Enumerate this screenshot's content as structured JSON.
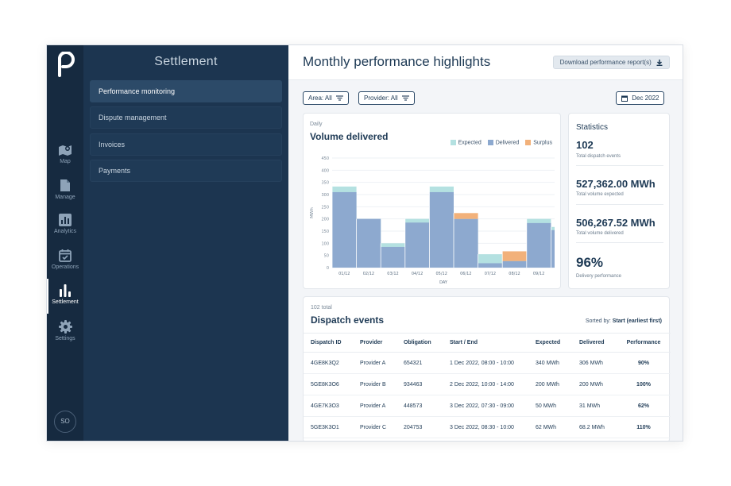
{
  "rail": {
    "items": [
      {
        "label": "Map",
        "icon": "map-icon"
      },
      {
        "label": "Manage",
        "icon": "document-icon"
      },
      {
        "label": "Analytics",
        "icon": "analytics-icon"
      },
      {
        "label": "Operations",
        "icon": "calendar-check-icon"
      },
      {
        "label": "Settlement",
        "icon": "bar-chart-icon"
      },
      {
        "label": "Settings",
        "icon": "gear-icon"
      }
    ],
    "avatar": "SO"
  },
  "sidebar": {
    "title": "Settlement",
    "items": [
      {
        "label": "Performance monitoring"
      },
      {
        "label": "Dispute management"
      },
      {
        "label": "Invoices"
      },
      {
        "label": "Payments"
      }
    ]
  },
  "header": {
    "title": "Monthly performance highlights",
    "download_label": "Download performance report(s)"
  },
  "filters": {
    "area": "Area: All",
    "provider": "Provider: All",
    "date": "Dec 2022"
  },
  "chart_card": {
    "subtitle": "Daily",
    "title": "Volume delivered"
  },
  "chart_data": {
    "type": "bar",
    "title": "Volume delivered",
    "xlabel": "DAY",
    "ylabel": "MWh",
    "ylim": [
      0,
      450
    ],
    "yticks": [
      "0",
      "50",
      "100",
      "150",
      "200",
      "250",
      "300",
      "350",
      "400",
      "450"
    ],
    "categories": [
      "01/12",
      "02/12",
      "03/12",
      "04/12",
      "05/12",
      "06/12",
      "07/12",
      "08/12",
      "09/12",
      "10/12"
    ],
    "series": [
      {
        "name": "Expected",
        "values": [
          333,
          200,
          100,
          200,
          333,
          200,
          55,
          27,
          200,
          167
        ]
      },
      {
        "name": "Delivered",
        "values": [
          310,
          200,
          85,
          185,
          310,
          200,
          18,
          27,
          183,
          154
        ]
      },
      {
        "name": "Surplus",
        "values": [
          0,
          0,
          0,
          0,
          0,
          24,
          0,
          40,
          0,
          0
        ]
      }
    ],
    "colors": {
      "Expected": "#b4e1e1",
      "Delivered": "#8da9cf",
      "Surplus": "#f2b17a"
    }
  },
  "stats": {
    "title": "Statistics",
    "items": [
      {
        "value": "102",
        "label": "Total dispatch events"
      },
      {
        "value": "527,362.00 MWh",
        "label": "Total volume expected"
      },
      {
        "value": "506,267.52 MWh",
        "label": "Total volume delivered"
      },
      {
        "value": "96%",
        "label": "Delivery performance"
      }
    ]
  },
  "table": {
    "total": "102 total",
    "title": "Dispatch events",
    "sorted_prefix": "Sorted by:",
    "sorted_value": "Start (earliest first)",
    "columns": [
      "Dispatch ID",
      "Provider",
      "Obligation",
      "Start / End",
      "Expected",
      "Delivered",
      "Performance"
    ],
    "rows": [
      [
        "4GE8K3Q2",
        "Provider A",
        "654321",
        "1 Dec 2022, 08:00 - 10:00",
        "340 MWh",
        "306 MWh",
        "90%"
      ],
      [
        "5GE8K3O6",
        "Provider B",
        "934463",
        "2 Dec 2022, 10:00 - 14:00",
        "200 MWh",
        "200 MWh",
        "100%"
      ],
      [
        "4GE7K3O3",
        "Provider A",
        "448573",
        "3 Dec 2022, 07:30 - 09:00",
        "50 MWh",
        "31 MWh",
        "62%"
      ],
      [
        "5GE3K3O1",
        "Provider C",
        "204753",
        "3 Dec 2022, 08:30 - 10:00",
        "62 MWh",
        "68.2 MWh",
        "110%"
      ]
    ]
  }
}
